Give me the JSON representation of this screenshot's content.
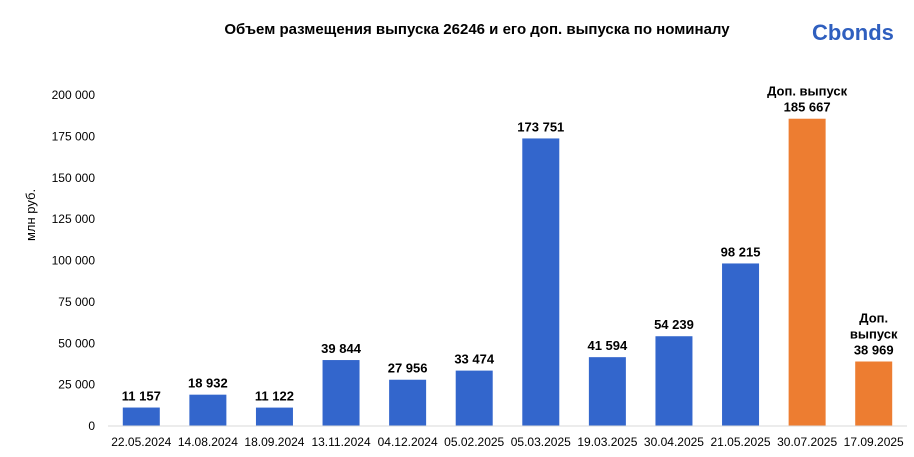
{
  "logo": "Cbonds",
  "chart_data": {
    "type": "bar",
    "title": "Объем размещения выпуска 26246 и его доп. выпуска по номиналу",
    "ylabel": "млн руб.",
    "xlabel": "",
    "ylim": [
      0,
      200000
    ],
    "yticks": [
      "0",
      "25 000",
      "50 000",
      "75 000",
      "100 000",
      "125 000",
      "150 000",
      "175 000",
      "200 000"
    ],
    "ytick_values": [
      0,
      25000,
      50000,
      75000,
      100000,
      125000,
      150000,
      175000,
      200000
    ],
    "grid": false,
    "categories": [
      "22.05.2024",
      "14.08.2024",
      "18.09.2024",
      "13.11.2024",
      "04.12.2024",
      "05.02.2025",
      "05.03.2025",
      "19.03.2025",
      "30.04.2025",
      "21.05.2025",
      "30.07.2025",
      "17.09.2025"
    ],
    "values": [
      11157,
      18932,
      11122,
      39844,
      27956,
      33474,
      173751,
      41594,
      54239,
      98215,
      185667,
      38969
    ],
    "value_labels": [
      "11 157",
      "18 932",
      "11 122",
      "39 844",
      "27 956",
      "33 474",
      "173 751",
      "41 594",
      "54 239",
      "98 215",
      "185 667",
      "38 969"
    ],
    "annotations": [
      "",
      "",
      "",
      "",
      "",
      "",
      "",
      "",
      "",
      "",
      "Доп. выпуск",
      "Доп.\nвыпуск"
    ],
    "colors": [
      "#3366cc",
      "#3366cc",
      "#3366cc",
      "#3366cc",
      "#3366cc",
      "#3366cc",
      "#3366cc",
      "#3366cc",
      "#3366cc",
      "#3366cc",
      "#ed7d31",
      "#ed7d31"
    ]
  }
}
